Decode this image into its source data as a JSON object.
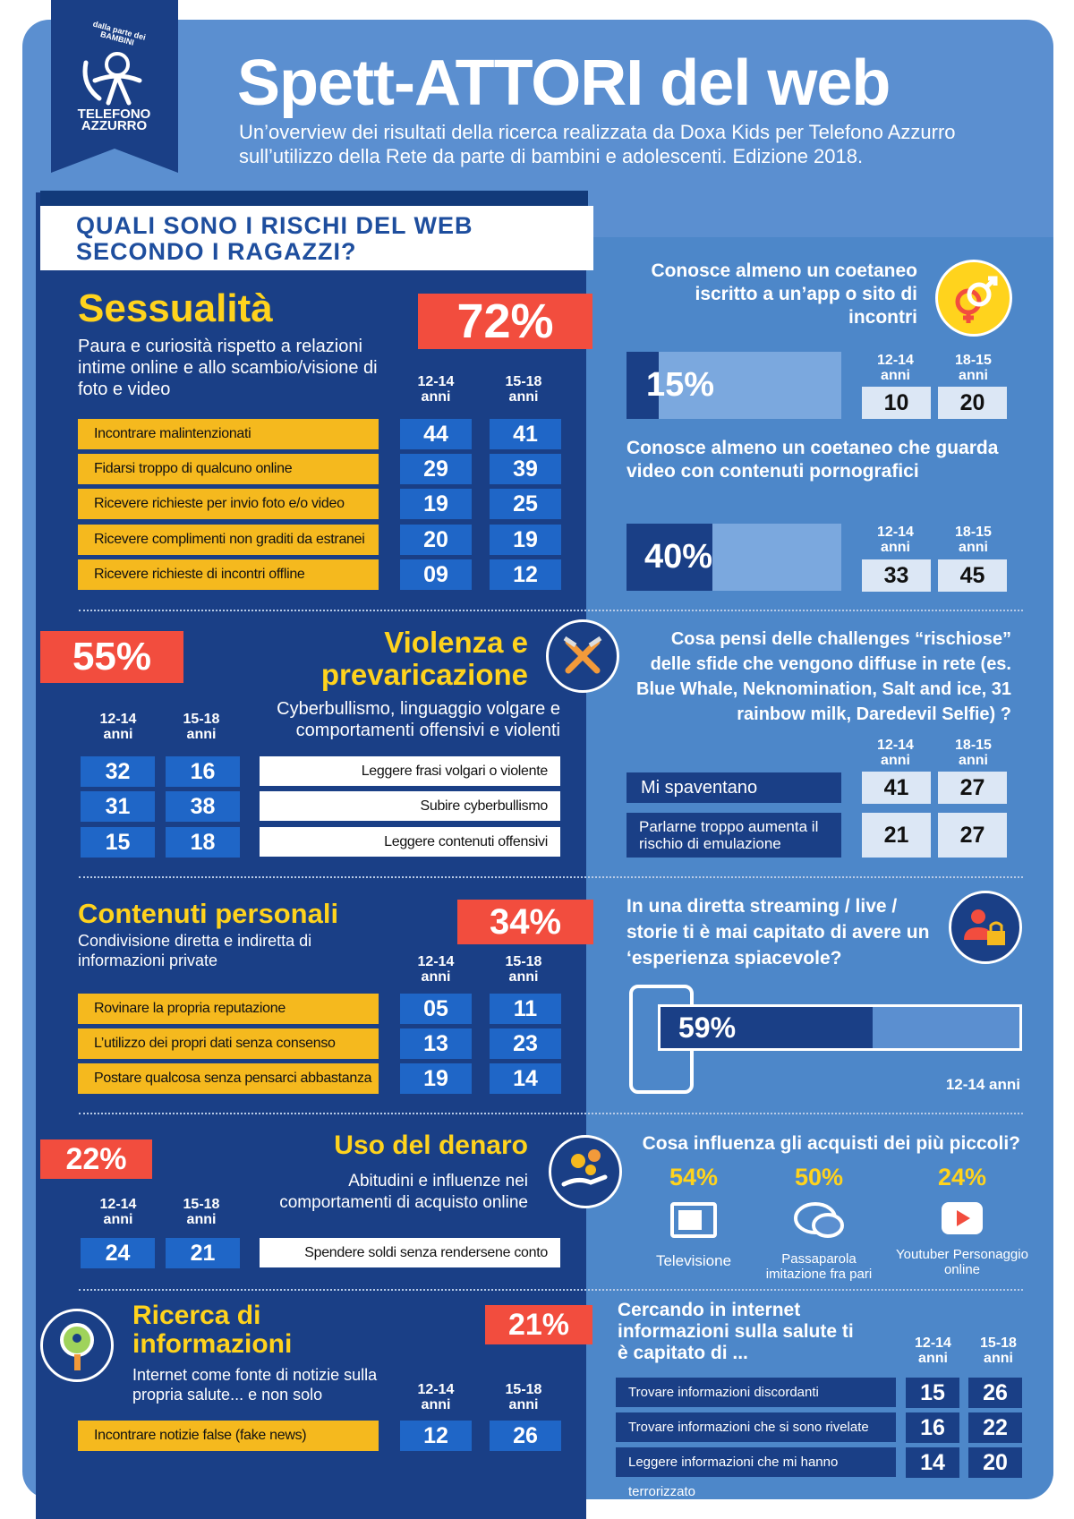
{
  "logo": {
    "arc": "dalla parte dei BAMBINI",
    "name1": "TELEFONO",
    "name2": "AZZURRO"
  },
  "title": "Spett-ATTORI del web",
  "subtitle": "Un’overview dei risultati della ricerca realizzata da Doxa Kids per Telefono Azzurro sull’utilizzo della Rete da parte di bambini e adolescenti. Edizione 2018.",
  "banner": {
    "line1": "QUALI SONO I RISCHI DEL WEB",
    "line2": "SECONDO I RAGAZZI?"
  },
  "age": {
    "a": "12-14",
    "b": "15-18",
    "c": "18-15",
    "unit": "anni"
  },
  "sessualita": {
    "title": "Sessualità",
    "pct": "72%",
    "desc": "Paura e curiosità rispetto a relazioni intime online e allo scambio/visione di foto e video",
    "rows": [
      {
        "label": "Incontrare malintenzionati",
        "a": "44",
        "b": "41"
      },
      {
        "label": "Fidarsi troppo di qualcuno online",
        "a": "29",
        "b": "39"
      },
      {
        "label": "Ricevere richieste per invio foto e/o video",
        "a": "19",
        "b": "25"
      },
      {
        "label": "Ricevere complimenti non graditi da estranei",
        "a": "20",
        "b": "19"
      },
      {
        "label": "Ricevere richieste di incontri offline",
        "a": "09",
        "b": "12"
      }
    ]
  },
  "violenza": {
    "title1": "Violenza e",
    "title2": "prevaricazione",
    "pct": "55%",
    "desc": "Cyberbullismo, linguaggio volgare e comportamenti offensivi e violenti",
    "rows": [
      {
        "label": "Leggere frasi volgari o violente",
        "a": "32",
        "b": "16"
      },
      {
        "label": "Subire cyberbullismo",
        "a": "31",
        "b": "38"
      },
      {
        "label": "Leggere contenuti offensivi",
        "a": "15",
        "b": "18"
      }
    ]
  },
  "contenuti": {
    "title": "Contenuti personali",
    "pct": "34%",
    "desc": "Condivisione diretta e indiretta di informazioni private",
    "rows": [
      {
        "label": "Rovinare la propria reputazione",
        "a": "05",
        "b": "11"
      },
      {
        "label": "L’utilizzo dei propri dati senza consenso",
        "a": "13",
        "b": "23"
      },
      {
        "label": "Postare qualcosa senza pensarci abbastanza",
        "a": "19",
        "b": "14"
      }
    ]
  },
  "denaro": {
    "title": "Uso del denaro",
    "pct": "22%",
    "desc": "Abitudini e influenze nei comportamenti di acquisto online",
    "rows": [
      {
        "label": "Spendere soldi senza rendersene conto",
        "a": "24",
        "b": "21"
      }
    ]
  },
  "ricerca": {
    "title1": "Ricerca di",
    "title2": "informazioni",
    "pct": "21%",
    "desc": "Internet come fonte di notizie sulla propria salute... e non solo",
    "rows": [
      {
        "label": "Incontrare notizie false (fake news)",
        "a": "12",
        "b": "26"
      }
    ]
  },
  "incontri": {
    "q": "Conosce almeno un coetaneo iscritto a un’app o sito di incontri",
    "pct": "15%",
    "pct_value": 0.15,
    "a": "10",
    "b": "20"
  },
  "porno": {
    "q": "Conosce almeno un coetaneo che guarda video con contenuti pornografici",
    "pct": "40%",
    "pct_value": 0.4,
    "a": "33",
    "b": "45"
  },
  "challenges": {
    "q": "Cosa pensi  delle challenges “rischiose” delle sfide che vengono diffuse in rete (es. Blue Whale, Neknomination, Salt and ice, 31 rainbow milk, Daredevil Selfie) ?",
    "rows": [
      {
        "label": "Mi spaventano",
        "a": "41",
        "b": "27"
      },
      {
        "label": "Parlarne troppo aumenta il rischio di emulazione",
        "a": "21",
        "b": "27"
      }
    ]
  },
  "streaming": {
    "q": "In una diretta streaming / live / storie ti è mai capitato di avere un ‘esperienza spiacevole?",
    "pct": "59%",
    "pct_value": 0.59,
    "age_label": "12-14 anni"
  },
  "acquisti": {
    "q": "Cosa influenza gli acquisti dei più piccoli?",
    "items": [
      {
        "pct": "54%",
        "label": "Televisione",
        "icon": "tv-icon"
      },
      {
        "pct": "50%",
        "label": "Passaparola imitazione fra pari",
        "icon": "chat-bubbles-icon"
      },
      {
        "pct": "24%",
        "label": "Youtuber Personaggio online",
        "icon": "play-button-icon"
      }
    ]
  },
  "salute": {
    "q": "Cercando in internet informazioni sulla salute ti è capitato di ...",
    "rows": [
      {
        "label": "Trovare informazioni discordanti",
        "a": "15",
        "b": "26"
      },
      {
        "label": "Trovare informazioni che si sono rivelate false",
        "a": "16",
        "b": "22"
      },
      {
        "label": "Leggere informazioni che mi hanno terrorizzato",
        "a": "14",
        "b": "20"
      }
    ]
  },
  "colors": {
    "navy": "#1a3f86",
    "panel": "#5b8fd0",
    "yellow": "#ffd31d",
    "red": "#f24d3e"
  }
}
